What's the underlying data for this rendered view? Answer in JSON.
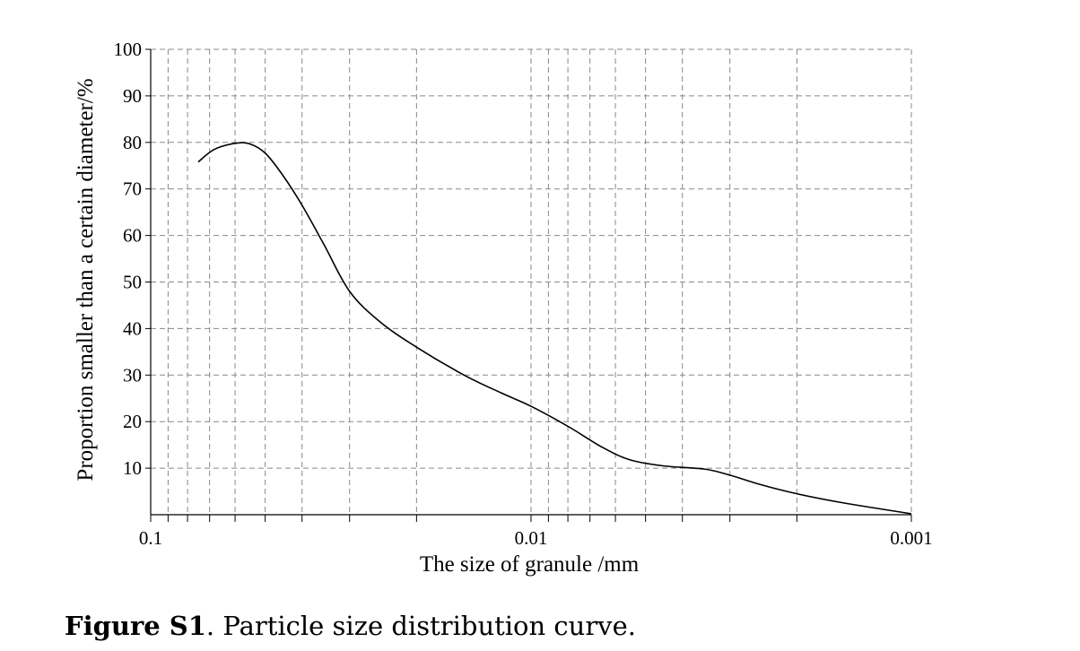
{
  "chart_data": {
    "type": "line",
    "xlabel": "The size of granule /mm",
    "ylabel": "Proportion smaller than a certain diameter/%",
    "x_scale": "log",
    "x_reversed": true,
    "xlim": [
      0.1,
      0.001
    ],
    "ylim": [
      0,
      100
    ],
    "x_ticks": [
      0.1,
      0.01,
      0.001
    ],
    "x_tick_labels": [
      "0.1",
      "0.01",
      "0.001"
    ],
    "y_ticks": [
      10,
      20,
      30,
      40,
      50,
      60,
      70,
      80,
      90,
      100
    ],
    "y_tick_labels": [
      "10",
      "20",
      "30",
      "40",
      "50",
      "60",
      "70",
      "80",
      "90",
      "100"
    ],
    "grid": true,
    "grid_style": "dashed",
    "line_color": "#000000",
    "grid_color": "#888888",
    "series": [
      {
        "x": [
          0.075,
          0.068,
          0.06,
          0.055,
          0.05,
          0.045,
          0.04,
          0.035,
          0.03,
          0.025,
          0.02,
          0.015,
          0.012,
          0.01,
          0.008,
          0.0065,
          0.0055,
          0.0045,
          0.0035,
          0.003,
          0.0025,
          0.002,
          0.0015,
          0.001
        ],
        "y": [
          75.8,
          78.5,
          79.8,
          79.7,
          77.7,
          73.0,
          66.5,
          58.0,
          48.0,
          41.5,
          36.0,
          30.0,
          26.2,
          23.3,
          19.0,
          14.5,
          11.8,
          10.5,
          9.8,
          8.5,
          6.5,
          4.5,
          2.5,
          0.2
        ]
      }
    ]
  },
  "caption": {
    "label": "Figure S1",
    "text": ". Particle size distribution curve."
  }
}
